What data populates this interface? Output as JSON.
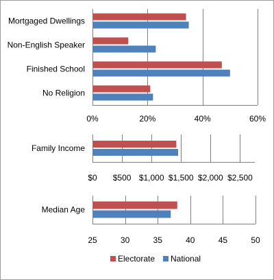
{
  "chart_data": [
    {
      "type": "bar",
      "orientation": "horizontal",
      "categories": [
        "Mortgaged Dwellings",
        "Non-English Speaker",
        "Finished School",
        "No Religion"
      ],
      "series": [
        {
          "name": "Electorate",
          "color": "#c0504d",
          "values": [
            34,
            13,
            47,
            21
          ]
        },
        {
          "name": "National",
          "color": "#4f81bd",
          "values": [
            35,
            23,
            50,
            22
          ]
        }
      ],
      "xlim": [
        0,
        60
      ],
      "ticks": [
        0,
        20,
        40,
        60
      ],
      "tick_labels": [
        "0%",
        "20%",
        "40%",
        "60%"
      ],
      "grid": true
    },
    {
      "type": "bar",
      "orientation": "horizontal",
      "categories": [
        "Family Income"
      ],
      "series": [
        {
          "name": "Electorate",
          "color": "#c0504d",
          "values": [
            1420
          ]
        },
        {
          "name": "National",
          "color": "#4f81bd",
          "values": [
            1450
          ]
        }
      ],
      "xlim": [
        0,
        2750
      ],
      "ticks": [
        0,
        500,
        1000,
        1500,
        2000,
        2500
      ],
      "tick_labels": [
        "$0",
        "$500",
        "$1,000",
        "$1,500",
        "$2,000",
        "$2,500"
      ],
      "grid": true
    },
    {
      "type": "bar",
      "orientation": "horizontal",
      "categories": [
        "Median Age"
      ],
      "series": [
        {
          "name": "Electorate",
          "color": "#c0504d",
          "values": [
            38
          ]
        },
        {
          "name": "National",
          "color": "#4f81bd",
          "values": [
            37
          ]
        }
      ],
      "xlim": [
        25,
        50
      ],
      "ticks": [
        25,
        30,
        35,
        40,
        45,
        50
      ],
      "tick_labels": [
        "25",
        "30",
        "35",
        "40",
        "45",
        "50"
      ],
      "grid": true
    }
  ],
  "legend": {
    "position": "bottom",
    "items": [
      {
        "name": "Electorate",
        "color": "#c0504d"
      },
      {
        "name": "National",
        "color": "#4f81bd"
      }
    ]
  }
}
